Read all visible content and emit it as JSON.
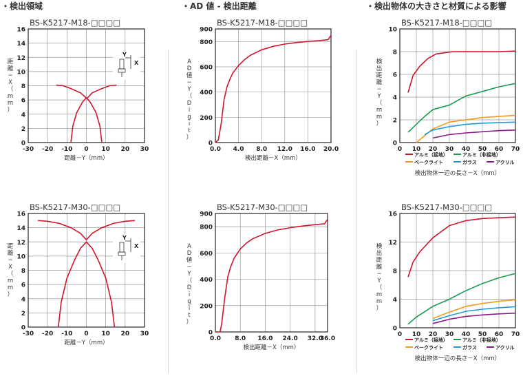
{
  "sections": [
    "・検出領域",
    "・AD 値 - 検出距離",
    "・検出物体の大きさと材質による影響"
  ],
  "colors": {
    "line": "#d0142c",
    "grid": "#9a9a9a",
    "axis": "#111111",
    "aluminum_grounded": "#d0142c",
    "aluminum_ungrounded": "#1a9a50",
    "bakelite": "#f09a1e",
    "glass": "#1e9ad6",
    "acrylic": "#8c1a8c"
  },
  "chart_data": [
    {
      "type": "line",
      "title": "BS-K5217-M18-□□□□",
      "xlabel": "距離－Y（mm）",
      "ylabel": "距離 ─ X（mm）",
      "xlim": [
        -30,
        30
      ],
      "ylim": [
        0,
        16
      ],
      "xticks": [
        -30,
        -20,
        -10,
        0,
        10,
        20,
        30
      ],
      "yticks": [
        0,
        2,
        4,
        6,
        8,
        10,
        12,
        14,
        16
      ],
      "tick_labels_x": [
        "-30",
        "-20",
        "-10",
        "0",
        "10",
        "20",
        "30"
      ],
      "tick_labels_y": [
        "0",
        "2",
        "4",
        "6",
        "8",
        "10",
        "12",
        "14",
        "16"
      ],
      "grid": true,
      "inset_labels": [
        "Y",
        "X"
      ],
      "series": [
        {
          "x": [
            -15.5,
            -12,
            -8,
            -3,
            0.3,
            3,
            8,
            12,
            15.5
          ],
          "y": [
            8.1,
            8.0,
            7.6,
            7.0,
            6.2,
            7.0,
            7.6,
            8.0,
            8.1
          ]
        },
        {
          "x": [
            -8,
            -7,
            -5,
            -2,
            0,
            2,
            5,
            7,
            8
          ],
          "y": [
            0,
            2.3,
            4.2,
            5.7,
            6.3,
            5.7,
            4.2,
            2.3,
            0
          ]
        }
      ]
    },
    {
      "type": "line",
      "title": "BS-K5217-M18-□□□□",
      "xlabel": "検出距離－X（mm）",
      "ylabel": "AD 値 ─ Y（Digit）",
      "xlim": [
        0,
        20
      ],
      "ylim": [
        0,
        900
      ],
      "xticks": [
        0,
        4,
        8,
        12,
        16,
        20
      ],
      "yticks": [
        0,
        200,
        400,
        600,
        800,
        900
      ],
      "tick_labels_x": [
        "0.0",
        "4.0",
        "8.0",
        "12.0",
        "16.0",
        "20.0"
      ],
      "tick_labels_y": [
        "0",
        "200",
        "400",
        "600",
        "800",
        "900"
      ],
      "grid": true,
      "series": [
        {
          "x": [
            0,
            0.5,
            1.0,
            1.5,
            2.0,
            2.5,
            3.0,
            4.0,
            5.0,
            6.0,
            8.0,
            10.0,
            12.0,
            14.0,
            16.0,
            18.0,
            19.5,
            20.0
          ],
          "y": [
            0,
            20,
            150,
            340,
            440,
            500,
            550,
            610,
            655,
            690,
            735,
            762,
            780,
            792,
            801,
            808,
            815,
            850
          ]
        }
      ]
    },
    {
      "type": "line",
      "title": "BS-K5217-M18-□□□□",
      "xlabel": "検出物体一辺の長さ－X（mm）",
      "ylabel": "検出距離 ─ Y（mm）",
      "xlim": [
        0,
        70
      ],
      "ylim": [
        0,
        10
      ],
      "xticks": [
        0,
        10,
        20,
        30,
        40,
        50,
        60,
        70
      ],
      "yticks": [
        0,
        2,
        4,
        6,
        8,
        10
      ],
      "tick_labels_x": [
        "0",
        "10",
        "20",
        "30",
        "40",
        "50",
        "60",
        "70"
      ],
      "tick_labels_y": [
        "0",
        "2",
        "4",
        "6",
        "8",
        "10"
      ],
      "grid": true,
      "legend": "bottom",
      "series": [
        {
          "name": "アルミ（接地）",
          "x": [
            5,
            8,
            12,
            17,
            22,
            27,
            32,
            40,
            50,
            60,
            70
          ],
          "y": [
            4.4,
            5.9,
            6.7,
            7.4,
            7.8,
            7.9,
            8.0,
            8.0,
            8.0,
            8.0,
            8.05
          ]
        },
        {
          "name": "アルミ（非接地）",
          "x": [
            5,
            10,
            15,
            20,
            25,
            30,
            35,
            40,
            50,
            60,
            70
          ],
          "y": [
            0.9,
            1.6,
            2.3,
            2.9,
            3.1,
            3.3,
            3.7,
            4.1,
            4.5,
            4.9,
            5.2
          ]
        },
        {
          "name": "ベークライト",
          "x": [
            10,
            15,
            20,
            30,
            40,
            50,
            60,
            70
          ],
          "y": [
            0.0,
            0.6,
            1.2,
            1.8,
            2.0,
            2.2,
            2.3,
            2.4
          ]
        },
        {
          "name": "ガラス",
          "x": [
            15,
            20,
            30,
            40,
            50,
            60,
            70
          ],
          "y": [
            0.7,
            1.1,
            1.4,
            1.6,
            1.7,
            1.75,
            1.8
          ]
        },
        {
          "name": "アクリル",
          "x": [
            20,
            30,
            40,
            50,
            60,
            70
          ],
          "y": [
            0.4,
            0.7,
            0.85,
            0.95,
            1.05,
            1.1
          ]
        }
      ]
    },
    {
      "type": "line",
      "title": "BS-K5217-M30-□□□□",
      "xlabel": "距離－Y（mm）",
      "ylabel": "距離 ─ X（mm）",
      "xlim": [
        -30,
        30
      ],
      "ylim": [
        0,
        16
      ],
      "xticks": [
        -30,
        -20,
        -10,
        0,
        10,
        20,
        30
      ],
      "yticks": [
        0,
        2,
        4,
        6,
        8,
        10,
        12,
        14,
        16
      ],
      "tick_labels_x": [
        "-30",
        "-20",
        "-10",
        "0",
        "10",
        "20",
        "30"
      ],
      "tick_labels_y": [
        "0",
        "2",
        "4",
        "6",
        "8",
        "10",
        "12",
        "14",
        "16"
      ],
      "grid": true,
      "inset_labels": [
        "Y",
        "X"
      ],
      "series": [
        {
          "x": [
            -25,
            -20,
            -14,
            -8,
            -3,
            0,
            3,
            8,
            14,
            20,
            25
          ],
          "y": [
            15.0,
            14.9,
            14.6,
            14.0,
            13.2,
            12.3,
            13.2,
            14.0,
            14.6,
            14.9,
            15.0
          ]
        },
        {
          "x": [
            -14.5,
            -13,
            -10,
            -6,
            -3,
            0,
            3,
            6,
            10,
            13,
            14.5
          ],
          "y": [
            0,
            3.5,
            6.9,
            9.5,
            11.1,
            12.0,
            11.1,
            9.5,
            6.9,
            3.5,
            0
          ]
        }
      ]
    },
    {
      "type": "line",
      "title": "BS-K5217-M30-□□□□",
      "xlabel": "検出距離－X（mm）",
      "ylabel": "AD 値 ─ Y（Digit）",
      "xlim": [
        0,
        36
      ],
      "ylim": [
        0,
        900
      ],
      "xticks": [
        0,
        8,
        16,
        24,
        32,
        36
      ],
      "yticks": [
        0,
        200,
        400,
        600,
        800,
        900
      ],
      "tick_labels_x": [
        "0.0",
        "8.0",
        "16.0",
        "24.0",
        "32.0",
        "36.0"
      ],
      "tick_labels_y": [
        "0",
        "200",
        "400",
        "600",
        "800",
        "900"
      ],
      "grid": true,
      "series": [
        {
          "x": [
            0,
            1.5,
            2.0,
            3.0,
            4.0,
            5.0,
            6.0,
            8.0,
            10.0,
            12.0,
            16.0,
            20.0,
            24.0,
            28.0,
            32.0,
            35.0,
            36.0
          ],
          "y": [
            0,
            0,
            60,
            260,
            420,
            500,
            560,
            630,
            676,
            708,
            749,
            775,
            792,
            805,
            815,
            822,
            855
          ]
        }
      ]
    },
    {
      "type": "line",
      "title": "BS-K5217-M30-□□□□",
      "xlabel": "検出物体一辺の長さ－X（mm）",
      "ylabel": "検出距離 ─ Y（mm）",
      "xlim": [
        0,
        70
      ],
      "ylim": [
        0,
        16
      ],
      "xticks": [
        0,
        10,
        20,
        30,
        40,
        50,
        60,
        70
      ],
      "yticks": [
        0,
        4,
        8,
        12,
        16
      ],
      "tick_labels_x": [
        "0",
        "10",
        "20",
        "30",
        "40",
        "50",
        "60",
        "70"
      ],
      "tick_labels_y": [
        "0",
        "4",
        "8",
        "12",
        "16"
      ],
      "grid": true,
      "legend": "bottom",
      "series": [
        {
          "name": "アルミ（接地）",
          "x": [
            5,
            8,
            12,
            20,
            30,
            40,
            50,
            60,
            70
          ],
          "y": [
            7.1,
            9.2,
            10.6,
            12.6,
            14.3,
            15.0,
            15.3,
            15.4,
            15.5
          ]
        },
        {
          "name": "アルミ（非接地）",
          "x": [
            5,
            10,
            20,
            30,
            40,
            50,
            60,
            70
          ],
          "y": [
            0.5,
            1.5,
            3.0,
            4.0,
            5.2,
            6.2,
            7.0,
            7.6
          ]
        },
        {
          "name": "ベークライト",
          "x": [
            20,
            30,
            40,
            50,
            60,
            70
          ],
          "y": [
            1.3,
            2.2,
            3.0,
            3.4,
            3.7,
            3.9
          ]
        },
        {
          "name": "ガラス",
          "x": [
            20,
            30,
            40,
            50,
            60,
            70
          ],
          "y": [
            1.0,
            1.7,
            2.3,
            2.6,
            2.8,
            2.95
          ]
        },
        {
          "name": "アクリル",
          "x": [
            20,
            30,
            40,
            50,
            60,
            70
          ],
          "y": [
            0.6,
            1.2,
            1.6,
            1.8,
            1.95,
            2.05
          ]
        }
      ]
    }
  ]
}
